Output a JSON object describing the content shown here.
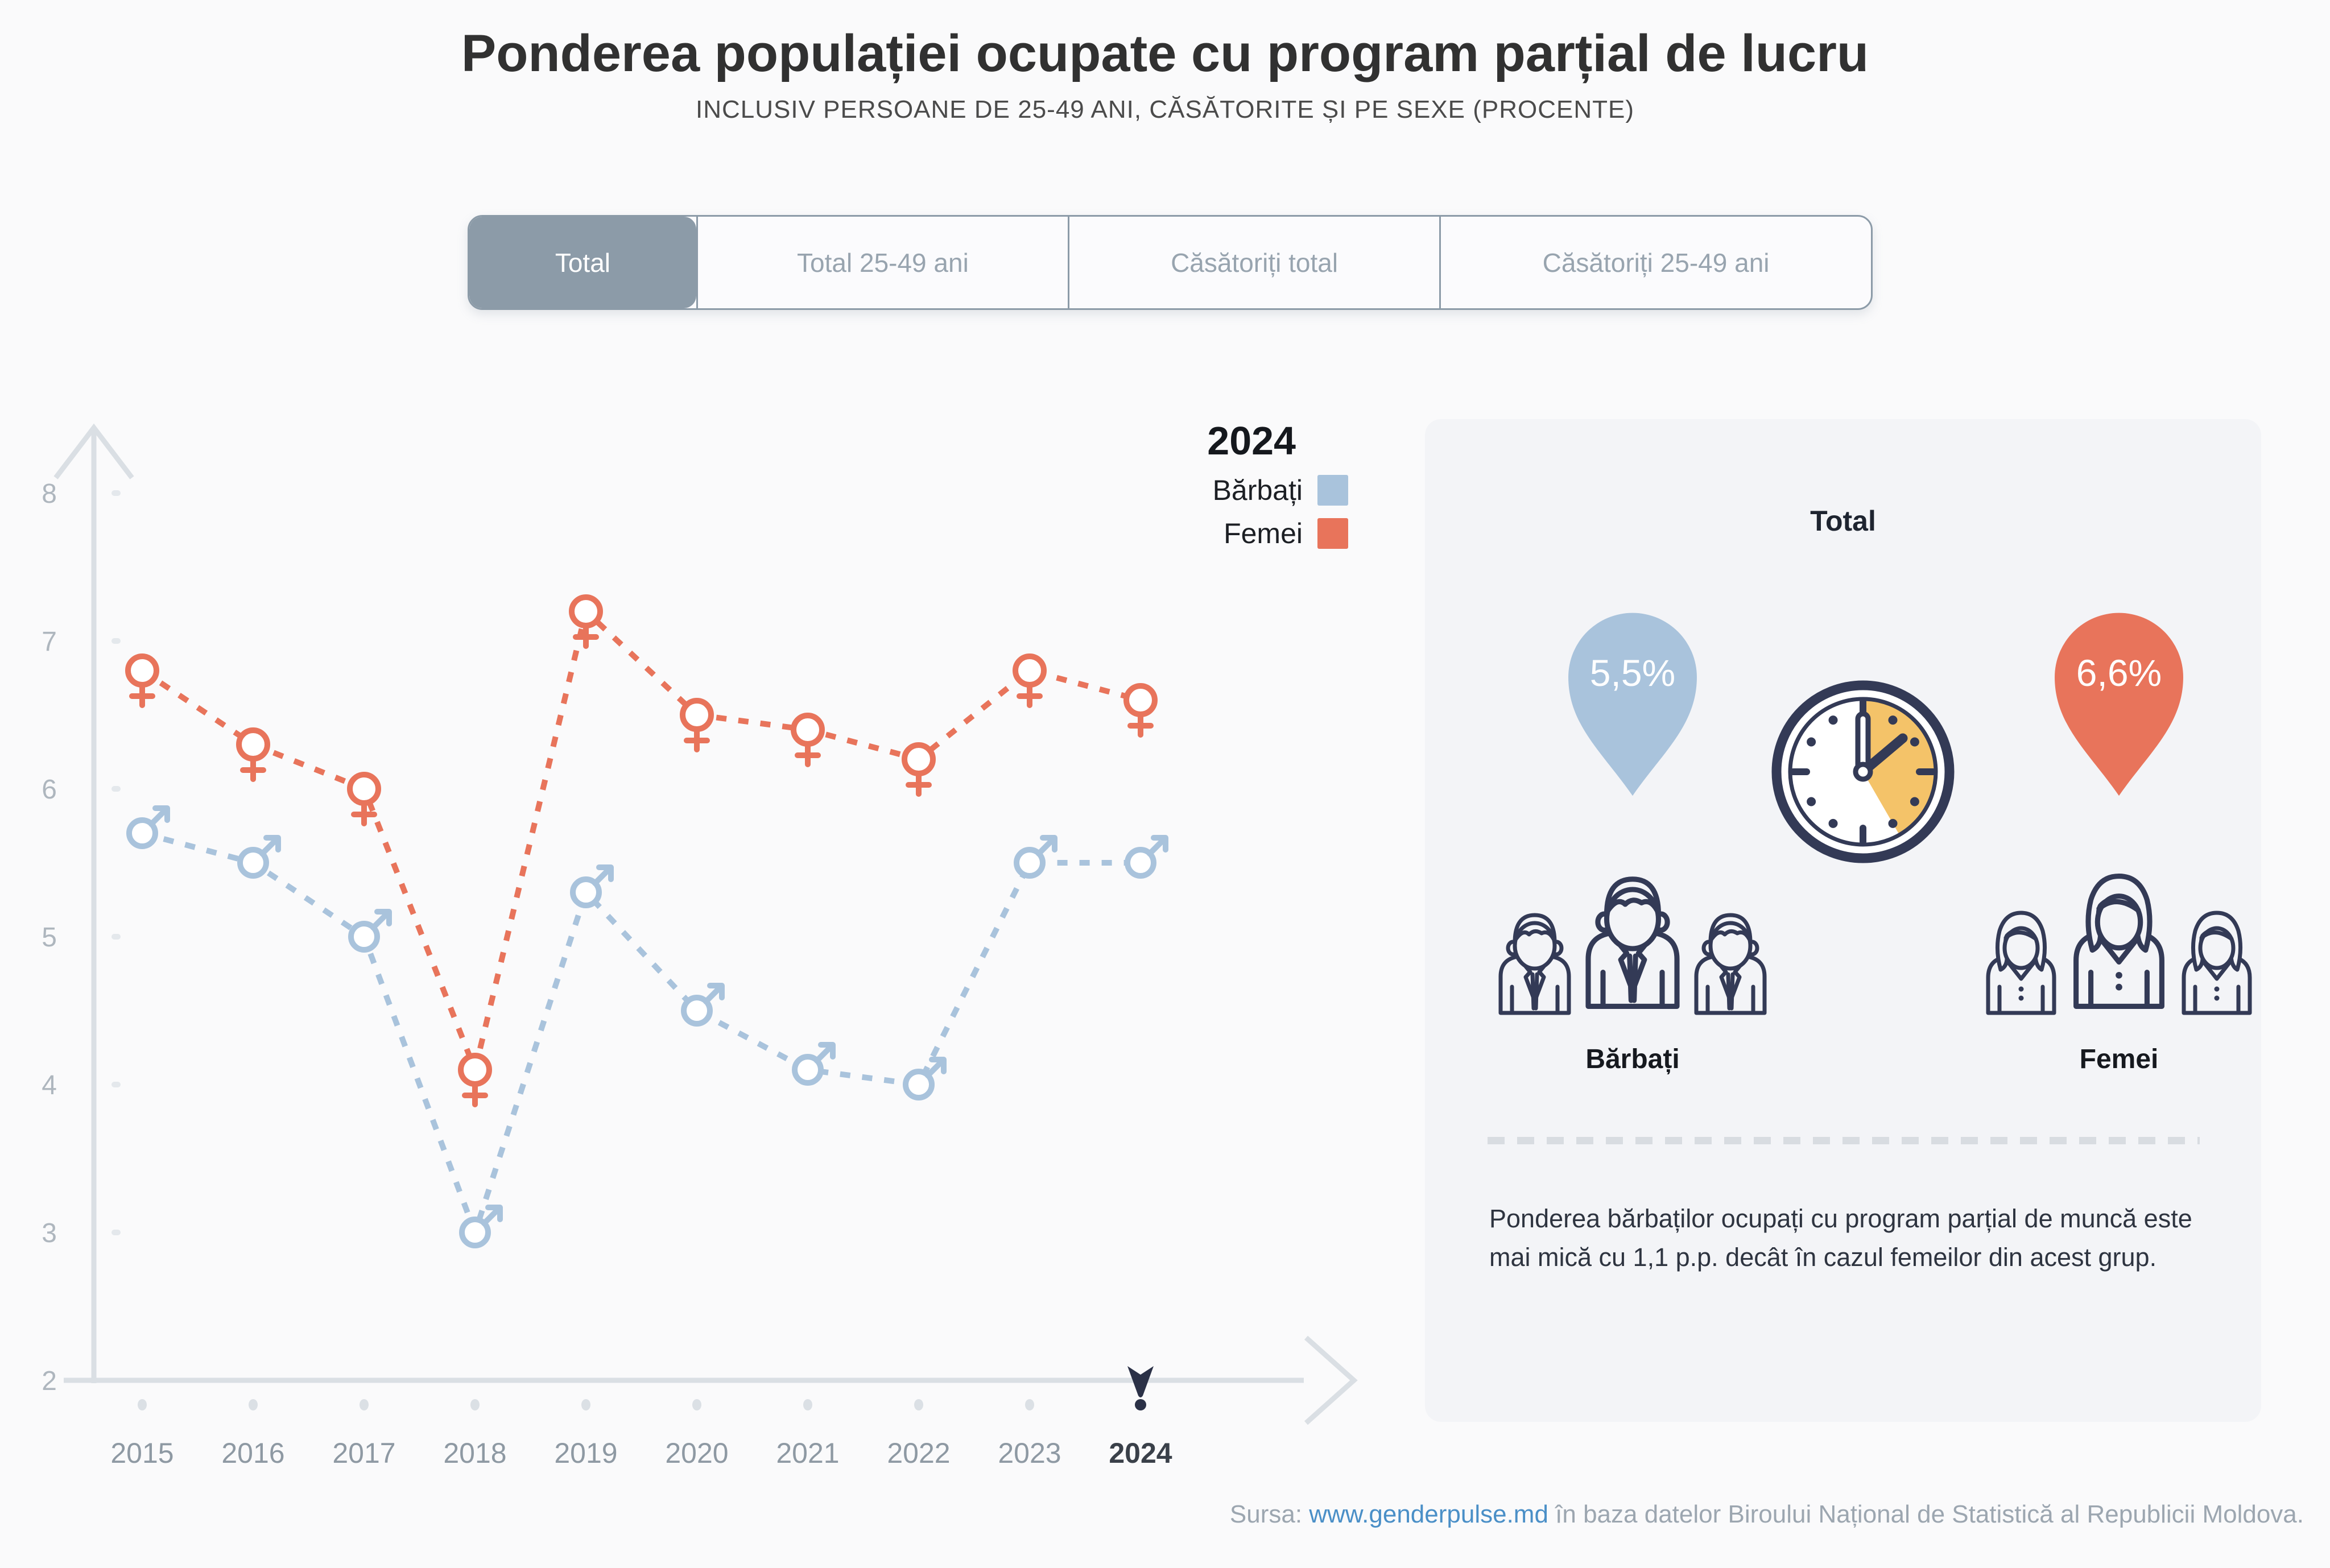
{
  "title": "Ponderea populației ocupate cu program parțial de lucru",
  "subtitle": "INCLUSIV PERSOANE DE 25-49 ANI, CĂSĂTORITE ȘI PE SEXE (PROCENTE)",
  "tabs": [
    {
      "label": "Total",
      "selected": true
    },
    {
      "label": "Total 25-49 ani",
      "selected": false
    },
    {
      "label": "Căsătoriți total",
      "selected": false
    },
    {
      "label": "Căsătoriți 25-49 ani",
      "selected": false
    }
  ],
  "legend": {
    "year": "2024",
    "men_label": "Bărbați",
    "women_label": "Femei"
  },
  "chart_data": {
    "type": "line",
    "x": [
      "2015",
      "2016",
      "2017",
      "2018",
      "2019",
      "2020",
      "2021",
      "2022",
      "2023",
      "2024"
    ],
    "series": [
      {
        "name": "Bărbați",
        "marker": "male",
        "color": "#A9C3DC",
        "values": [
          5.7,
          5.5,
          5.0,
          3.0,
          5.3,
          4.5,
          4.1,
          4.0,
          5.5,
          5.5
        ]
      },
      {
        "name": "Femei",
        "marker": "female",
        "color": "#E8745B",
        "values": [
          6.8,
          6.3,
          6.0,
          4.1,
          7.2,
          6.5,
          6.4,
          6.2,
          6.8,
          6.6
        ]
      }
    ],
    "yticks": [
      8,
      7,
      6,
      5,
      4,
      3,
      2
    ],
    "ylim": [
      2,
      8.5
    ],
    "xlabel": "",
    "ylabel": "",
    "grid": false,
    "legend_position": "top-right",
    "line_style": "dashed",
    "highlight_x": "2024"
  },
  "panel": {
    "title": "Total",
    "men_value": "5,5%",
    "women_value": "6,6%",
    "men_label": "Bărbați",
    "women_label": "Femei",
    "note": "Ponderea bărbaților ocupați cu program parțial de muncă este mai mică cu 1,1 p.p. decât în cazul femeilor din acest grup."
  },
  "footer": {
    "prefix": "Sursa: ",
    "link": "www.genderpulse.md",
    "suffix": " în baza datelor Biroului Național de Statistică al Republicii Moldova."
  },
  "colors": {
    "page_bg": "#FAFAFB",
    "panel_bg": "#F3F4F7",
    "men": "#A9C3DC",
    "women": "#E8745B",
    "navy": "#333A56",
    "navy_dark": "#2B3147",
    "axis": "#DADFE4",
    "tick_text": "#AEB6BE",
    "year_text": "#8E99A3",
    "year_highlight": "#3A4049",
    "clock_wedge": "#F4C369",
    "tab_selected_bg": "#8C9BA8",
    "tab_text": "#98A4AF",
    "link": "#4A8FC7",
    "footer_text": "#9CA6B0",
    "divider": "#D8DCE1"
  }
}
